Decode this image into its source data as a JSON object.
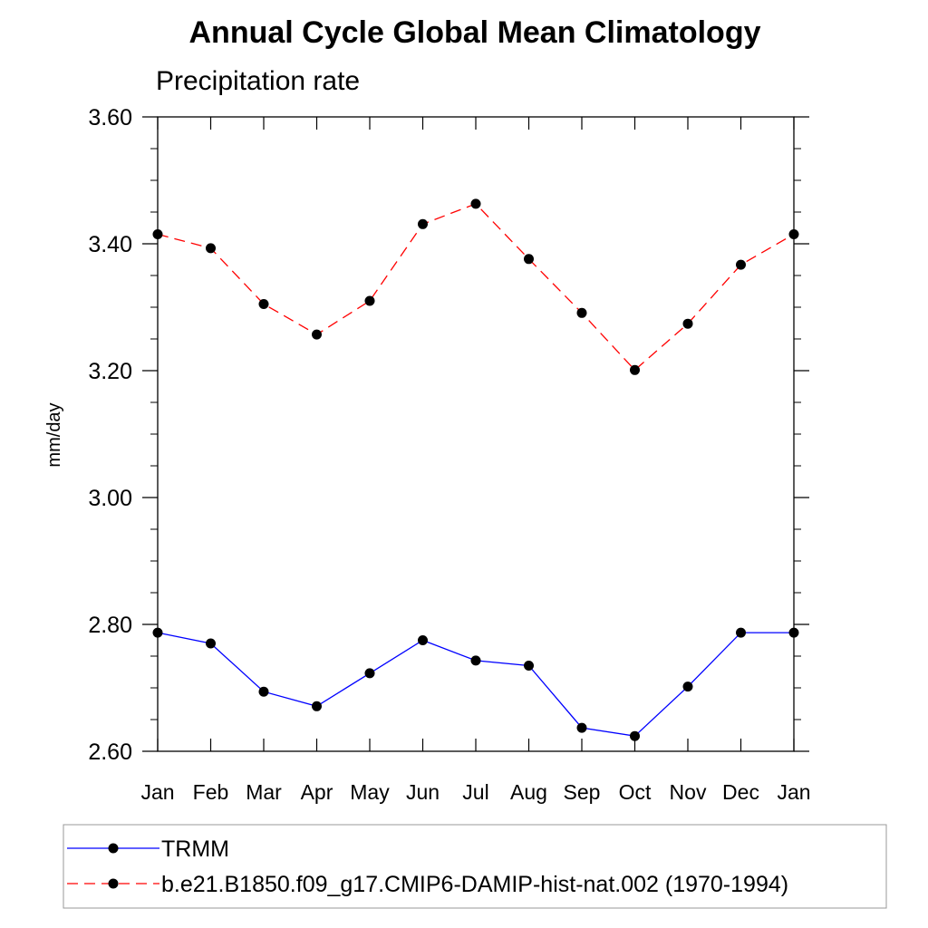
{
  "chart_data": {
    "type": "line",
    "title": "Annual Cycle Global Mean Climatology",
    "subtitle": "Precipitation rate",
    "xlabel": "",
    "ylabel": "mm/day",
    "categories": [
      "Jan",
      "Feb",
      "Mar",
      "Apr",
      "May",
      "Jun",
      "Jul",
      "Aug",
      "Sep",
      "Oct",
      "Nov",
      "Dec",
      "Jan"
    ],
    "ylim": [
      2.6,
      3.6
    ],
    "yticks": [
      "2.60",
      "2.80",
      "3.00",
      "3.20",
      "3.40",
      "3.60"
    ],
    "grid": false,
    "legend_position": "bottom",
    "series": [
      {
        "name": "TRMM",
        "color": "#0000ff",
        "line_style": "solid",
        "marker": "circle",
        "values": [
          2.787,
          2.77,
          2.694,
          2.671,
          2.723,
          2.775,
          2.743,
          2.735,
          2.637,
          2.624,
          2.702,
          2.787,
          2.787
        ]
      },
      {
        "name": "b.e21.B1850.f09_g17.CMIP6-DAMIP-hist-nat.002 (1970-1994)",
        "color": "#ff0000",
        "line_style": "dashed",
        "marker": "circle",
        "values": [
          3.415,
          3.393,
          3.305,
          3.257,
          3.31,
          3.431,
          3.463,
          3.376,
          3.291,
          3.201,
          3.274,
          3.367,
          3.415
        ]
      }
    ]
  }
}
